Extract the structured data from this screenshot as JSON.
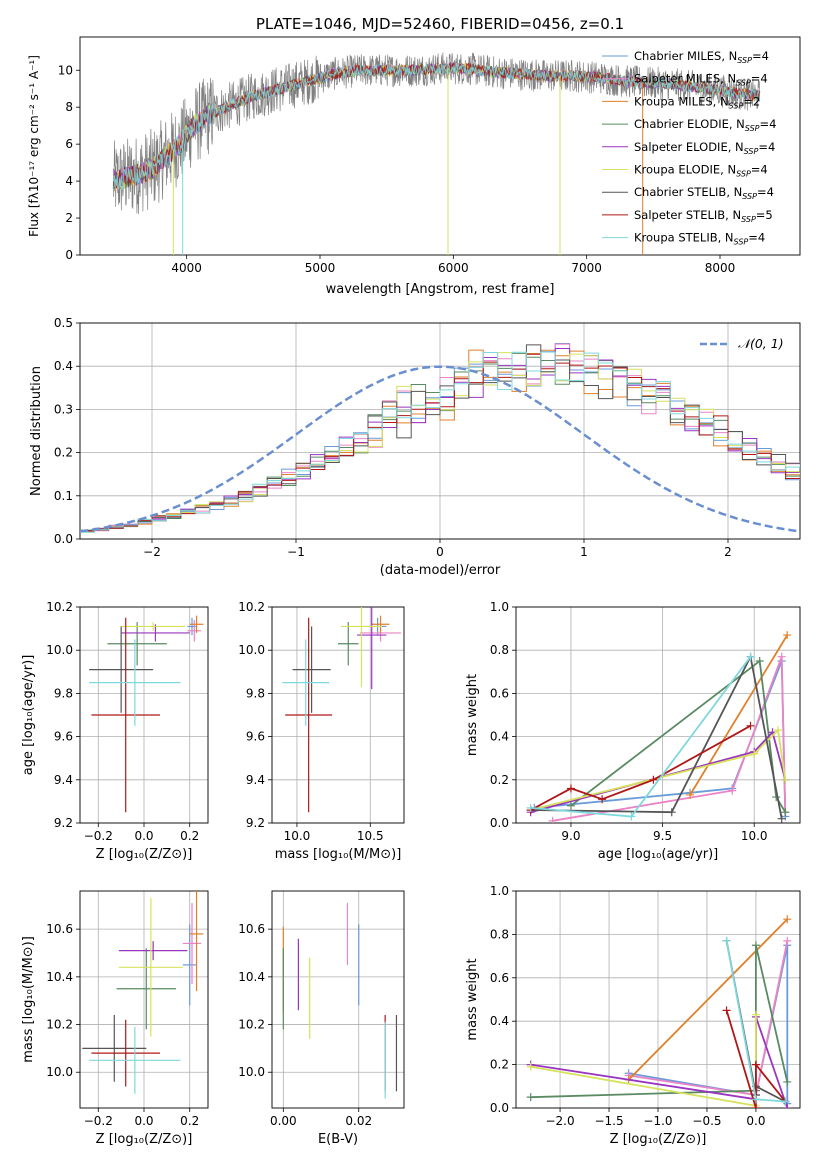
{
  "figure_title": "PLATE=1046, MJD=52460, FIBERID=0456, z=0.1",
  "colors": {
    "Chabrier MILES": "#6a9bd8",
    "Salpeter MILES": "#ea83c7",
    "Kroupa MILES": "#e0802a",
    "Chabrier ELODIE": "#5a8a62",
    "Salpeter ELODIE": "#9a35c0",
    "Kroupa ELODIE": "#d6e25c",
    "Chabrier STELIB": "#555555",
    "Salpeter STELIB": "#b01818",
    "Kroupa STELIB": "#7fd8de",
    "data": "#808080",
    "gaussian": "#6a8fd0",
    "grid": "#b0b0b0"
  },
  "chart_data": [
    {
      "id": "spectrum",
      "type": "line",
      "title": "PLATE=1046, MJD=52460, FIBERID=0456, z=0.1",
      "xlabel": "wavelength [Angstrom, rest frame]",
      "ylabel": "Flux [fλ10⁻¹⁷ erg cm⁻² s⁻¹ A⁻¹]",
      "xlim": [
        3200,
        8600
      ],
      "ylim": [
        0,
        11.8
      ],
      "xticks": [
        4000,
        5000,
        6000,
        7000,
        8000
      ],
      "yticks": [
        0,
        2,
        4,
        6,
        8,
        10
      ],
      "grid": false,
      "legend_position": "right",
      "x_range_data": [
        3450,
        8300
      ],
      "continuum": {
        "x": [
          3450,
          3550,
          3650,
          3750,
          3850,
          3950,
          4050,
          4150,
          4300,
          4500,
          4700,
          4900,
          5100,
          5300,
          5500,
          5700,
          5900,
          6100,
          6300,
          6500,
          6700,
          6900,
          7100,
          7300,
          7500,
          7700,
          7900,
          8100,
          8300
        ],
        "y": [
          4.0,
          4.2,
          4.4,
          4.7,
          5.4,
          6.0,
          7.0,
          7.5,
          8.0,
          8.6,
          9.0,
          9.4,
          9.8,
          10.0,
          10.0,
          10.0,
          10.1,
          10.1,
          9.9,
          9.8,
          9.7,
          9.7,
          9.6,
          9.4,
          9.3,
          9.2,
          9.0,
          8.8,
          8.6
        ]
      },
      "series": [
        {
          "name": "Chabrier MILES",
          "nssp": "4"
        },
        {
          "name": "Salpeter MILES",
          "nssp": "4"
        },
        {
          "name": "Kroupa MILES",
          "nssp": "2"
        },
        {
          "name": "Chabrier ELODIE",
          "nssp": "4"
        },
        {
          "name": "Salpeter ELODIE",
          "nssp": "4"
        },
        {
          "name": "Kroupa ELODIE",
          "nssp": "4"
        },
        {
          "name": "Chabrier STELIB",
          "nssp": "4"
        },
        {
          "name": "Salpeter STELIB",
          "nssp": "5"
        },
        {
          "name": "Kroupa STELIB",
          "nssp": "4"
        }
      ],
      "drop_lines": [
        {
          "x": 3900,
          "series": "Kroupa ELODIE"
        },
        {
          "x": 6800,
          "series": "Kroupa ELODIE"
        },
        {
          "x": 7420,
          "series": "Kroupa MILES"
        },
        {
          "x": 5960,
          "series": "Kroupa ELODIE"
        },
        {
          "x": 3970,
          "series": "Kroupa STELIB"
        }
      ]
    },
    {
      "id": "residuals",
      "type": "line",
      "xlabel": "(data-model)/error",
      "ylabel": "Normed distribution",
      "xlim": [
        -2.5,
        2.5
      ],
      "ylim": [
        0,
        0.5
      ],
      "xticks": [
        -2,
        -1,
        0,
        1,
        2
      ],
      "yticks": [
        0.0,
        0.1,
        0.2,
        0.3,
        0.4,
        0.5
      ],
      "grid": true,
      "legend": {
        "label": "𝒩(0, 1)",
        "position": "top-right"
      },
      "bin_width": 0.1,
      "base_histogram": [
        0.018,
        0.022,
        0.028,
        0.033,
        0.04,
        0.048,
        0.055,
        0.062,
        0.07,
        0.078,
        0.088,
        0.1,
        0.112,
        0.127,
        0.142,
        0.158,
        0.175,
        0.193,
        0.211,
        0.23,
        0.25,
        0.27,
        0.29,
        0.305,
        0.32,
        0.335,
        0.35,
        0.362,
        0.375,
        0.385,
        0.393,
        0.398,
        0.4,
        0.398,
        0.393,
        0.385,
        0.375,
        0.362,
        0.35,
        0.335,
        0.32,
        0.305,
        0.29,
        0.27,
        0.25,
        0.23,
        0.211,
        0.193,
        0.175,
        0.158
      ]
    },
    {
      "id": "age-vs-z",
      "type": "scatter",
      "xlabel": "Z [log₁₀(Z/Z⊙)]",
      "ylabel": "age  [log₁₀(age/yr)]",
      "xlim": [
        -0.28,
        0.28
      ],
      "ylim": [
        9.2,
        10.2
      ],
      "xticks": [
        -0.2,
        0.0,
        0.2
      ],
      "xticklabels": [
        "−0.2",
        "0.0",
        "0.2"
      ],
      "yticks": [
        9.2,
        9.4,
        9.6,
        9.8,
        10.0,
        10.2
      ],
      "grid": true,
      "points": [
        {
          "series": "Chabrier MILES",
          "x": 0.21,
          "xerr": 0.02,
          "y": 10.11,
          "yerr": 0.04
        },
        {
          "series": "Salpeter MILES",
          "x": 0.22,
          "xerr": 0.03,
          "y": 10.09,
          "yerr": 0.05
        },
        {
          "series": "Kroupa MILES",
          "x": 0.23,
          "xerr": 0.03,
          "y": 10.12,
          "yerr": 0.04
        },
        {
          "series": "Chabrier ELODIE",
          "x": -0.03,
          "xerr": 0.13,
          "y": 10.03,
          "yerr": 0.1
        },
        {
          "series": "Salpeter ELODIE",
          "x": 0.05,
          "xerr": 0.15,
          "y": 10.08,
          "yerr": 0.04
        },
        {
          "series": "Kroupa ELODIE",
          "x": 0.04,
          "xerr": 0.14,
          "y": 10.11,
          "yerr": 0.02
        },
        {
          "series": "Chabrier STELIB",
          "x": -0.1,
          "xerr": 0.14,
          "y": 9.91,
          "yerr": 0.2
        },
        {
          "series": "Salpeter STELIB",
          "x": -0.08,
          "xerr": 0.15,
          "y": 9.7,
          "yerr": 0.45
        },
        {
          "series": "Kroupa STELIB",
          "x": -0.04,
          "xerr": 0.2,
          "y": 9.85,
          "yerr": 0.2
        }
      ]
    },
    {
      "id": "age-vs-mass",
      "type": "scatter",
      "xlabel": "mass [log₁₀(M/M⊙)]",
      "xlim": [
        9.83,
        10.73
      ],
      "ylim": [
        9.2,
        10.2
      ],
      "xticks": [
        10.0,
        10.5
      ],
      "yticks": [
        9.2,
        9.4,
        9.6,
        9.8,
        10.0,
        10.2
      ],
      "grid": true,
      "points": [
        {
          "series": "Chabrier MILES",
          "x": 10.55,
          "xerr": 0.06,
          "y": 10.11,
          "yerr": 0.04
        },
        {
          "series": "Salpeter MILES",
          "x": 10.57,
          "xerr": 0.14,
          "y": 10.08,
          "yerr": 0.04
        },
        {
          "series": "Kroupa MILES",
          "x": 10.57,
          "xerr": 0.06,
          "y": 10.12,
          "yerr": 0.04
        },
        {
          "series": "Chabrier ELODIE",
          "x": 10.35,
          "xerr": 0.07,
          "y": 10.03,
          "yerr": 0.1
        },
        {
          "series": "Salpeter ELODIE",
          "x": 10.51,
          "xerr": 0.1,
          "y": 10.07,
          "yerr": 0.25
        },
        {
          "series": "Kroupa ELODIE",
          "x": 10.44,
          "xerr": 0.14,
          "y": 10.11,
          "yerr": 0.28
        },
        {
          "series": "Chabrier STELIB",
          "x": 10.1,
          "xerr": 0.13,
          "y": 9.91,
          "yerr": 0.2
        },
        {
          "series": "Salpeter STELIB",
          "x": 10.08,
          "xerr": 0.16,
          "y": 9.7,
          "yerr": 0.45
        },
        {
          "series": "Kroupa STELIB",
          "x": 10.06,
          "xerr": 0.16,
          "y": 9.85,
          "yerr": 0.2
        }
      ]
    },
    {
      "id": "weight-vs-age",
      "type": "line",
      "xlabel": "age  [log₁₀(age/yr)]",
      "ylabel": "mass weight",
      "xlim": [
        8.7,
        10.25
      ],
      "ylim": [
        0.0,
        1.0
      ],
      "xticks": [
        9.0,
        9.5,
        10.0
      ],
      "yticks": [
        0.0,
        0.2,
        0.4,
        0.6,
        0.8,
        1.0
      ],
      "grid": true,
      "series": [
        {
          "name": "Chabrier MILES",
          "x": [
            8.8,
            9.65,
            9.88,
            10.15,
            10.17
          ],
          "y": [
            0.07,
            0.14,
            0.16,
            0.75,
            0.03
          ]
        },
        {
          "name": "Salpeter MILES",
          "x": [
            8.9,
            9.88,
            10.15,
            10.17
          ],
          "y": [
            0.01,
            0.15,
            0.77,
            0.05
          ]
        },
        {
          "name": "Kroupa MILES",
          "x": [
            9.65,
            10.18
          ],
          "y": [
            0.13,
            0.87
          ]
        },
        {
          "name": "Chabrier ELODIE",
          "x": [
            9.0,
            10.03,
            10.12,
            10.17
          ],
          "y": [
            0.08,
            0.75,
            0.12,
            0.05
          ]
        },
        {
          "name": "Salpeter ELODIE",
          "x": [
            8.78,
            10.0,
            10.1,
            10.17
          ],
          "y": [
            0.05,
            0.33,
            0.42,
            0.2
          ]
        },
        {
          "name": "Kroupa ELODIE",
          "x": [
            8.78,
            10.0,
            10.13,
            10.17
          ],
          "y": [
            0.06,
            0.32,
            0.43,
            0.2
          ]
        },
        {
          "name": "Chabrier STELIB",
          "x": [
            8.78,
            9.55,
            9.98,
            10.15
          ],
          "y": [
            0.06,
            0.05,
            0.77,
            0.02
          ]
        },
        {
          "name": "Salpeter STELIB",
          "x": [
            8.78,
            9.0,
            9.17,
            9.45,
            9.98
          ],
          "y": [
            0.06,
            0.16,
            0.11,
            0.2,
            0.45
          ]
        },
        {
          "name": "Kroupa STELIB",
          "x": [
            8.78,
            9.33,
            9.98
          ],
          "y": [
            0.07,
            0.03,
            0.77
          ]
        }
      ]
    },
    {
      "id": "mass-vs-z",
      "type": "scatter",
      "xlabel": "Z [log₁₀(Z/Z⊙)]",
      "ylabel": "mass [log₁₀(M/M⊙)]",
      "xlim": [
        -0.28,
        0.28
      ],
      "ylim": [
        9.85,
        10.76
      ],
      "xticks": [
        -0.2,
        0.0,
        0.2
      ],
      "xticklabels": [
        "−0.2",
        "0.0",
        "0.2"
      ],
      "yticks": [
        10.0,
        10.2,
        10.4,
        10.6
      ],
      "grid": true,
      "points": [
        {
          "series": "Chabrier MILES",
          "x": 0.2,
          "xerr": 0.03,
          "y": 10.45,
          "yerr": 0.17
        },
        {
          "series": "Salpeter MILES",
          "x": 0.21,
          "xerr": 0.04,
          "y": 10.54,
          "yerr": 0.17
        },
        {
          "series": "Kroupa MILES",
          "x": 0.23,
          "xerr": 0.03,
          "y": 10.58,
          "yerr": 0.24
        },
        {
          "series": "Chabrier ELODIE",
          "x": 0.01,
          "xerr": 0.13,
          "y": 10.35,
          "yerr": 0.17
        },
        {
          "series": "Salpeter ELODIE",
          "x": 0.04,
          "xerr": 0.15,
          "y": 10.51,
          "yerr": 0.04
        },
        {
          "series": "Kroupa ELODIE",
          "x": 0.03,
          "xerr": 0.14,
          "y": 10.44,
          "yerr": 0.29
        },
        {
          "series": "Chabrier STELIB",
          "x": -0.13,
          "xerr": 0.14,
          "y": 10.1,
          "yerr": 0.14
        },
        {
          "series": "Salpeter STELIB",
          "x": -0.08,
          "xerr": 0.15,
          "y": 10.08,
          "yerr": 0.14
        },
        {
          "series": "Kroupa STELIB",
          "x": -0.04,
          "xerr": 0.2,
          "y": 10.05,
          "yerr": 0.14
        }
      ]
    },
    {
      "id": "mass-vs-ebv",
      "type": "scatter",
      "xlabel": "E(B-V)",
      "xlim": [
        -0.003,
        0.032
      ],
      "ylim": [
        9.85,
        10.76
      ],
      "xticks": [
        0.0,
        0.02
      ],
      "xticklabels": [
        "0.00",
        "0.02"
      ],
      "yticks": [
        10.0,
        10.2,
        10.4,
        10.6
      ],
      "grid": true,
      "points": [
        {
          "series": "Chabrier MILES",
          "x": 0.02,
          "y": 10.45,
          "yerr": 0.17
        },
        {
          "series": "Salpeter MILES",
          "x": 0.017,
          "y": 10.58,
          "yerr": 0.13
        },
        {
          "series": "Kroupa MILES",
          "x": 0.0,
          "y": 10.43,
          "yerr": 0.18
        },
        {
          "series": "Chabrier ELODIE",
          "x": 0.0,
          "y": 10.35,
          "yerr": 0.17
        },
        {
          "series": "Salpeter ELODIE",
          "x": 0.004,
          "y": 10.41,
          "yerr": 0.15
        },
        {
          "series": "Kroupa ELODIE",
          "x": 0.007,
          "y": 10.31,
          "yerr": 0.17
        },
        {
          "series": "Chabrier STELIB",
          "x": 0.03,
          "y": 10.08,
          "yerr": 0.16
        },
        {
          "series": "Salpeter STELIB",
          "x": 0.027,
          "y": 10.08,
          "yerr": 0.16
        },
        {
          "series": "Kroupa STELIB",
          "x": 0.027,
          "y": 10.05,
          "yerr": 0.16
        }
      ]
    },
    {
      "id": "weight-vs-z",
      "type": "line",
      "xlabel": "Z [log₁₀(Z/Z⊙)]",
      "ylabel": "mass weight",
      "xlim": [
        -2.45,
        0.45
      ],
      "ylim": [
        0.0,
        1.0
      ],
      "xticks": [
        -2.0,
        -1.5,
        -1.0,
        -0.5,
        0.0
      ],
      "xticklabels": [
        "−2.0",
        "−1.5",
        "−1.0",
        "−0.5",
        "0.0"
      ],
      "yticks": [
        0.0,
        0.2,
        0.4,
        0.6,
        0.8,
        1.0
      ],
      "grid": true,
      "series": [
        {
          "name": "Chabrier MILES",
          "x": [
            -1.3,
            0.0,
            0.32,
            0.32
          ],
          "y": [
            0.16,
            0.06,
            0.75,
            0.02
          ]
        },
        {
          "name": "Salpeter MILES",
          "x": [
            -1.3,
            0.0,
            0.32
          ],
          "y": [
            0.15,
            0.06,
            0.77
          ]
        },
        {
          "name": "Kroupa MILES",
          "x": [
            -1.3,
            0.32
          ],
          "y": [
            0.13,
            0.87
          ]
        },
        {
          "name": "Chabrier ELODIE",
          "x": [
            -2.3,
            0.0,
            0.0,
            0.32
          ],
          "y": [
            0.05,
            0.08,
            0.75,
            0.12
          ]
        },
        {
          "name": "Salpeter ELODIE",
          "x": [
            -2.3,
            0.0,
            0.0,
            0.32
          ],
          "y": [
            0.2,
            0.04,
            0.42,
            0.0
          ]
        },
        {
          "name": "Kroupa ELODIE",
          "x": [
            -2.3,
            0.0,
            0.0
          ],
          "y": [
            0.19,
            0.01,
            0.43
          ]
        },
        {
          "name": "Chabrier STELIB",
          "x": [
            -0.3,
            0.0,
            0.0,
            0.3
          ],
          "y": [
            0.77,
            0.06,
            0.1,
            0.03
          ]
        },
        {
          "name": "Salpeter STELIB",
          "x": [
            -0.3,
            0.0,
            0.0,
            0.3
          ],
          "y": [
            0.45,
            0.0,
            0.2,
            0.03
          ]
        },
        {
          "name": "Kroupa STELIB",
          "x": [
            -0.3,
            0.0,
            0.3
          ],
          "y": [
            0.77,
            0.04,
            0.03
          ]
        }
      ]
    }
  ]
}
